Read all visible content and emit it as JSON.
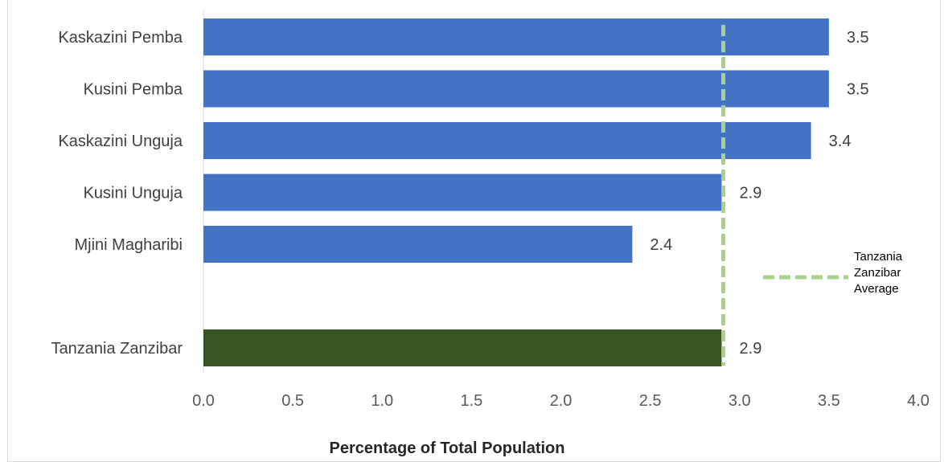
{
  "chart_data": {
    "type": "bar",
    "orientation": "horizontal",
    "categories": [
      "Kaskazini Pemba",
      "Kusini Pemba",
      "Kaskazini Unguja",
      "Kusini Unguja",
      "Mjini Magharibi",
      "",
      "Tanzania Zanzibar"
    ],
    "values": [
      3.5,
      3.5,
      3.4,
      2.9,
      2.4,
      null,
      2.9
    ],
    "value_labels": [
      "3.5",
      "3.5",
      "3.4",
      "2.9",
      "2.4",
      "",
      "2.9"
    ],
    "bar_colors": [
      "#4472C4",
      "#4472C4",
      "#4472C4",
      "#4472C4",
      "#4472C4",
      "#4472C4",
      "#375623"
    ],
    "xlabel": "Percentage of Total Population",
    "ylabel": "",
    "xlim": [
      0,
      4
    ],
    "xticks": [
      "0.0",
      "0.5",
      "1.0",
      "1.5",
      "2.0",
      "2.5",
      "3.0",
      "3.5",
      "4.0"
    ],
    "reference_line": {
      "value": 2.9,
      "color": "#A9D18E",
      "style": "dashed"
    },
    "legend": {
      "position": "right",
      "entries": [
        {
          "label_lines": [
            "Tanzania",
            "Zanzibar",
            "Average"
          ],
          "color": "#A9D18E",
          "style": "dashed"
        }
      ]
    },
    "grid": false
  }
}
